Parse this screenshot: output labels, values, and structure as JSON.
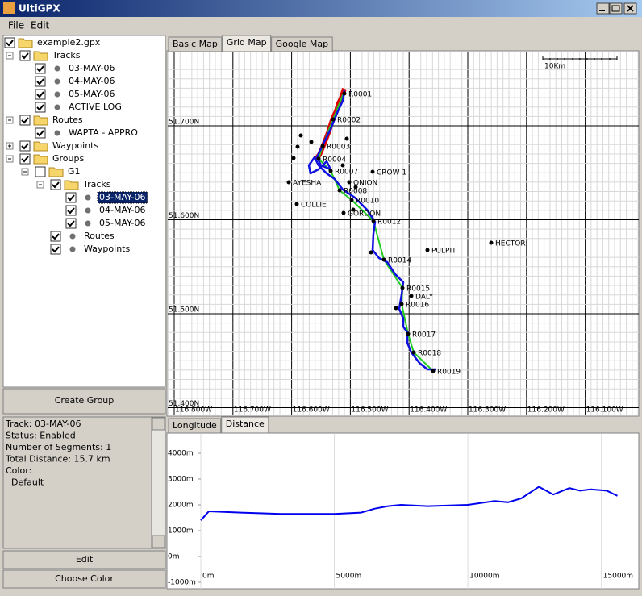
{
  "window": {
    "title": "UltiGPX"
  },
  "menu": [
    "File",
    "Edit"
  ],
  "tree": [
    {
      "label": "example2.gpx",
      "checked": true,
      "depth": 0,
      "icon": "folder"
    },
    {
      "label": "Tracks",
      "checked": true,
      "depth": 1,
      "icon": "folder",
      "expanded": true
    },
    {
      "label": "03-MAY-06",
      "checked": true,
      "depth": 2,
      "icon": "dot"
    },
    {
      "label": "04-MAY-06",
      "checked": true,
      "depth": 2,
      "icon": "dot"
    },
    {
      "label": "05-MAY-06",
      "checked": true,
      "depth": 2,
      "icon": "dot"
    },
    {
      "label": "ACTIVE LOG",
      "checked": true,
      "depth": 2,
      "icon": "dot"
    },
    {
      "label": "Routes",
      "checked": true,
      "depth": 1,
      "icon": "folder",
      "expanded": true
    },
    {
      "label": "WAPTA - APPRO",
      "checked": true,
      "depth": 2,
      "icon": "dot"
    },
    {
      "label": "Waypoints",
      "checked": true,
      "depth": 1,
      "icon": "folder",
      "expanded": false
    },
    {
      "label": "Groups",
      "checked": true,
      "depth": 1,
      "icon": "folder",
      "expanded": true
    },
    {
      "label": "G1",
      "checked": false,
      "depth": 2,
      "icon": "folder",
      "expanded": true
    },
    {
      "label": "Tracks",
      "checked": true,
      "depth": 3,
      "icon": "folder",
      "expanded": true
    },
    {
      "label": "03-MAY-06",
      "checked": true,
      "depth": 4,
      "icon": "dot",
      "selected": true
    },
    {
      "label": "04-MAY-06",
      "checked": true,
      "depth": 4,
      "icon": "dot"
    },
    {
      "label": "05-MAY-06",
      "checked": true,
      "depth": 4,
      "icon": "dot"
    },
    {
      "label": "Routes",
      "checked": true,
      "depth": 3,
      "icon": "dot"
    },
    {
      "label": "Waypoints",
      "checked": true,
      "depth": 3,
      "icon": "dot"
    }
  ],
  "buttons": {
    "create_group": "Create Group",
    "edit": "Edit",
    "choose_color": "Choose Color"
  },
  "info": [
    "Track: 03-MAY-06",
    "Status: Enabled",
    "Number of Segments: 1",
    "Total Distance: 15.7 km",
    "Color:",
    "  Default"
  ],
  "map_tabs": [
    "Basic Map",
    "Grid Map",
    "Google Map"
  ],
  "active_map_tab": 1,
  "map": {
    "scale": "10Km",
    "lat_labels": [
      "51.700N",
      "51.600N",
      "51.500N",
      "51.400N"
    ],
    "lon_labels": [
      "116.800W",
      "116.700W",
      "116.600W",
      "116.500W",
      "116.400W",
      "116.300W",
      "116.200W",
      "116.100W"
    ],
    "waypoints": [
      "R0001",
      "R0002",
      "R0003",
      "R0004",
      "R0007",
      "CROW 1",
      "AYESHA",
      "ONION",
      "R0008",
      "R0010",
      "COLLIE",
      "GORDON",
      "R0012",
      "PULPIT",
      "HECTOR",
      "R0014",
      "R0015",
      "DALY",
      "R0016",
      "R0017",
      "R0018",
      "R0019"
    ]
  },
  "chart_tabs": [
    "Longitude",
    "Distance"
  ],
  "active_chart_tab": 1,
  "chart_data": {
    "type": "line",
    "x": [
      0,
      300,
      1500,
      3000,
      5000,
      6000,
      6500,
      7000,
      7500,
      8500,
      10000,
      11000,
      11500,
      12000,
      12660,
      13200,
      13800,
      14200,
      14600,
      15200,
      15600
    ],
    "series": [
      {
        "color": "#0000ee",
        "values": [
          1400,
          1750,
          1700,
          1650,
          1650,
          1700,
          1850,
          1950,
          2000,
          1950,
          2000,
          2150,
          2100,
          2250,
          2700,
          2400,
          2650,
          2550,
          2600,
          2550,
          2350
        ]
      }
    ],
    "xlim": [
      0,
      16400
    ],
    "ylim": [
      -1250,
      4750
    ],
    "xticks": [
      {
        "value": 0,
        "label": "0m"
      },
      {
        "value": 5000,
        "label": "5000m"
      },
      {
        "value": 10000,
        "label": "10000m"
      },
      {
        "value": 15000,
        "label": "15000m"
      }
    ],
    "yticks": [
      {
        "value": 4000,
        "label": "4000m"
      },
      {
        "value": 3000,
        "label": "3000m"
      },
      {
        "value": 2000,
        "label": "2000m"
      },
      {
        "value": 1000,
        "label": "1000m"
      },
      {
        "value": 0,
        "label": "0m"
      },
      {
        "value": -1000,
        "label": "-1000m"
      }
    ]
  }
}
